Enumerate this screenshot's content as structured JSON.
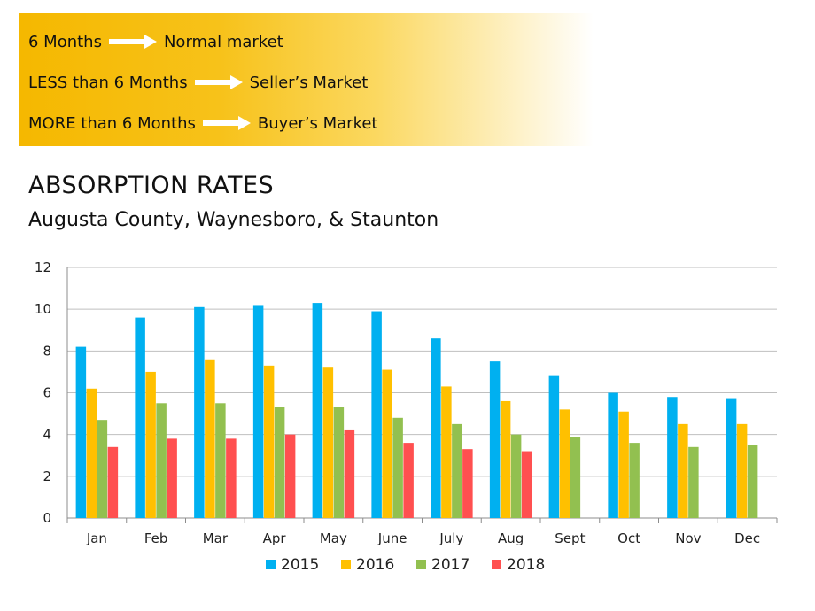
{
  "rules": [
    {
      "left": "6 Months",
      "right": "Normal market"
    },
    {
      "left": "LESS than 6 Months",
      "right": "Seller’s Market"
    },
    {
      "left": "MORE than 6 Months",
      "right": "Buyer’s Market"
    }
  ],
  "colors": {
    "banner": "#f5b800",
    "s2015": "#00b0f0",
    "s2016": "#ffc000",
    "s2017": "#92c050",
    "s2018": "#ff5050",
    "grid": "#bfbfbf"
  },
  "chart_data": {
    "type": "bar",
    "title": "ABSORPTION RATES",
    "subtitle": "Augusta County, Waynesboro, & Staunton",
    "categories": [
      "Jan",
      "Feb",
      "Mar",
      "Apr",
      "May",
      "June",
      "July",
      "Aug",
      "Sept",
      "Oct",
      "Nov",
      "Dec"
    ],
    "ylim": [
      0,
      12
    ],
    "yticks": [
      0,
      2,
      4,
      6,
      8,
      10,
      12
    ],
    "grid": true,
    "legend_position": "bottom",
    "series": [
      {
        "name": "2015",
        "values": [
          8.2,
          9.6,
          10.1,
          10.2,
          10.3,
          9.9,
          8.6,
          7.5,
          6.8,
          6.0,
          5.8,
          5.7
        ]
      },
      {
        "name": "2016",
        "values": [
          6.2,
          7.0,
          7.6,
          7.3,
          7.2,
          7.1,
          6.3,
          5.6,
          5.2,
          5.1,
          4.5,
          4.5
        ]
      },
      {
        "name": "2017",
        "values": [
          4.7,
          5.5,
          5.5,
          5.3,
          5.3,
          4.8,
          4.5,
          4.0,
          3.9,
          3.6,
          3.4,
          3.5
        ]
      },
      {
        "name": "2018",
        "values": [
          3.4,
          3.8,
          3.8,
          4.0,
          4.2,
          3.6,
          3.3,
          3.2,
          null,
          null,
          null,
          null
        ]
      }
    ]
  }
}
